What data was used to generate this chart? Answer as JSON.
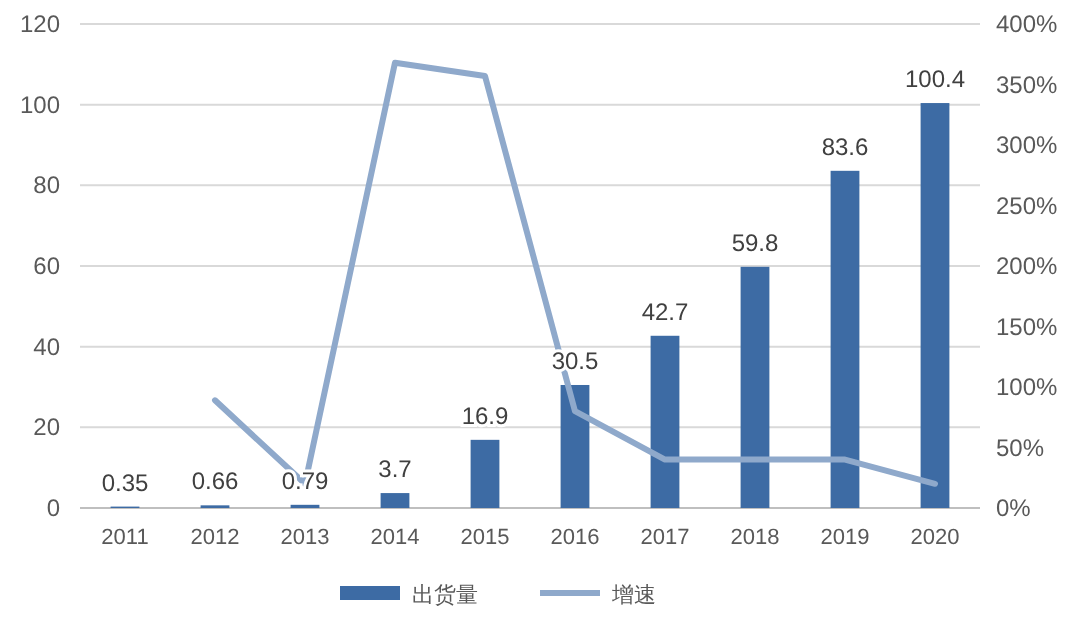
{
  "chart_data": {
    "type": "bar",
    "categories": [
      "2011",
      "2012",
      "2013",
      "2014",
      "2015",
      "2016",
      "2017",
      "2018",
      "2019",
      "2020"
    ],
    "series": [
      {
        "name": "出货量",
        "color": "#3d6ba4",
        "values": [
          0.35,
          0.66,
          0.79,
          3.7,
          16.9,
          30.5,
          42.7,
          59.8,
          83.6,
          100.4
        ],
        "value_labels": [
          "0.35",
          "0.66",
          "0.79",
          "3.7",
          "16.9",
          "30.5",
          "42.7",
          "59.8",
          "83.6",
          "100.4"
        ]
      },
      {
        "name": "增速",
        "type": "line",
        "axis": "y2",
        "color": "#8fa9cb",
        "values": [
          null,
          89,
          20,
          368,
          357,
          80,
          40,
          40,
          40,
          20
        ]
      }
    ],
    "ylim": [
      0,
      120
    ],
    "yticks": [
      0,
      20,
      40,
      60,
      80,
      100,
      120
    ],
    "y2lim": [
      0,
      400
    ],
    "y2ticks": [
      {
        "value": 0,
        "label": "0%"
      },
      {
        "value": 50,
        "label": "50%"
      },
      {
        "value": 100,
        "label": "100%"
      },
      {
        "value": 150,
        "label": "150%"
      },
      {
        "value": 200,
        "label": "200%"
      },
      {
        "value": 250,
        "label": "250%"
      },
      {
        "value": 300,
        "label": "300%"
      },
      {
        "value": 350,
        "label": "350%"
      },
      {
        "value": 400,
        "label": "400%"
      }
    ],
    "grid": "y",
    "legend": "bottom",
    "line_style": "solid"
  }
}
